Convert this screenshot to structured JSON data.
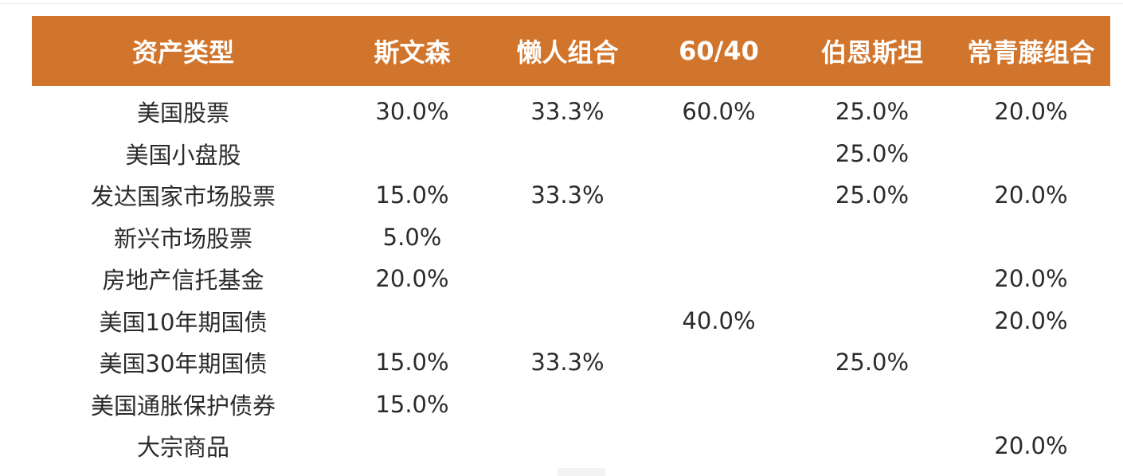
{
  "table": {
    "headers": [
      "资产类型",
      "斯文森",
      "懒人组合",
      "60/40",
      "伯恩斯坦",
      "常青藤组合"
    ],
    "rows": [
      [
        "美国股票",
        "30.0%",
        "33.3%",
        "60.0%",
        "25.0%",
        "20.0%"
      ],
      [
        "美国小盘股",
        "",
        "",
        "",
        "25.0%",
        ""
      ],
      [
        "发达国家市场股票",
        "15.0%",
        "33.3%",
        "",
        "25.0%",
        "20.0%"
      ],
      [
        "新兴市场股票",
        "5.0%",
        "",
        "",
        "",
        ""
      ],
      [
        "房地产信托基金",
        "20.0%",
        "",
        "",
        "",
        "20.0%"
      ],
      [
        "美国10年期国债",
        "",
        "",
        "40.0%",
        "",
        "20.0%"
      ],
      [
        "美国30年期国债",
        "15.0%",
        "33.3%",
        "",
        "25.0%",
        ""
      ],
      [
        "美国通胀保护债券",
        "15.0%",
        "",
        "",
        "",
        ""
      ],
      [
        "大宗商品",
        "",
        "",
        "",
        "",
        "20.0%"
      ]
    ]
  },
  "colors": {
    "header_bg": "#d2752c",
    "header_text": "#ffffff",
    "body_text": "#2b2b2b"
  }
}
